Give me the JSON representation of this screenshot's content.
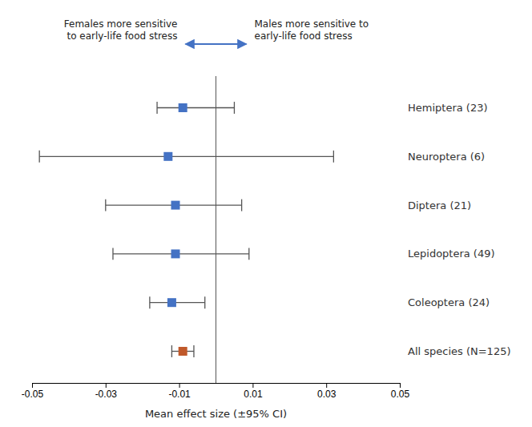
{
  "chart_data": {
    "type": "forest",
    "categories": [
      "Hemiptera (23)",
      "Neuroptera (6)",
      "Diptera (21)",
      "Lepidoptera (49)",
      "Coleoptera (24)",
      "All species (N=125)"
    ],
    "values": [
      -0.009,
      -0.013,
      -0.011,
      -0.011,
      -0.012,
      -0.009
    ],
    "ci_low": [
      -0.016,
      -0.048,
      -0.03,
      -0.028,
      -0.018,
      -0.012
    ],
    "ci_high": [
      0.005,
      0.032,
      0.007,
      0.009,
      -0.003,
      -0.006
    ],
    "colors": [
      "#4472C4",
      "#4472C4",
      "#4472C4",
      "#4472C4",
      "#4472C4",
      "#C0592A"
    ],
    "xlim": [
      -0.05,
      0.05
    ],
    "xticks": [
      -0.05,
      -0.03,
      -0.01,
      0.01,
      0.03,
      0.05
    ],
    "xlabel": "Mean effect size (±95% CI)",
    "vline": 0.0,
    "grid": false,
    "annotations": [
      {
        "text": "Females more sensitive\nto early-life food stress"
      },
      {
        "type": "arrow",
        "color": "#4472C4"
      },
      {
        "text": "Males more sensitive to\nearly-life food stress"
      }
    ]
  }
}
